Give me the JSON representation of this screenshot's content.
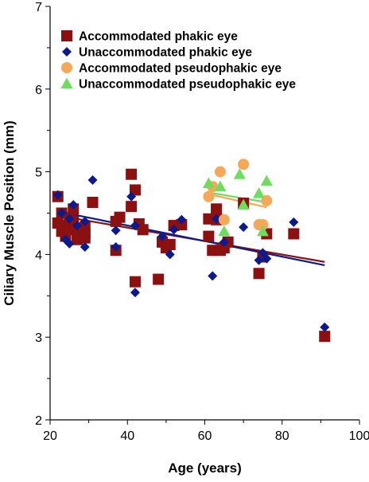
{
  "chart_data": {
    "type": "scatter",
    "xlabel": "Age (years)",
    "ylabel": "Ciliary Muscle Position (mm)",
    "xlim": [
      20,
      100
    ],
    "ylim": [
      2,
      7
    ],
    "x_ticks": [
      20,
      40,
      60,
      80,
      100
    ],
    "y_ticks": [
      2,
      3,
      4,
      5,
      6,
      7
    ],
    "legend_position": "top-left",
    "grid": false,
    "series": [
      {
        "name": "Accommodated phakic eye",
        "marker": "square",
        "color": "#8B1010",
        "points": [
          [
            22,
            4.7
          ],
          [
            22,
            4.38
          ],
          [
            23,
            4.28
          ],
          [
            23,
            4.5
          ],
          [
            24,
            4.35
          ],
          [
            24,
            4.22
          ],
          [
            25,
            4.45
          ],
          [
            25,
            4.3
          ],
          [
            26,
            4.55
          ],
          [
            26,
            4.4
          ],
          [
            27,
            4.3
          ],
          [
            27,
            4.18
          ],
          [
            29,
            4.25
          ],
          [
            29,
            4.2
          ],
          [
            29,
            4.33
          ],
          [
            31,
            4.63
          ],
          [
            37,
            4.05
          ],
          [
            37,
            4.4
          ],
          [
            38,
            4.45
          ],
          [
            41,
            4.97
          ],
          [
            41,
            4.58
          ],
          [
            42,
            4.78
          ],
          [
            42,
            3.67
          ],
          [
            43,
            4.37
          ],
          [
            44,
            4.3
          ],
          [
            48,
            3.7
          ],
          [
            49,
            4.15
          ],
          [
            50,
            4.08
          ],
          [
            51,
            4.12
          ],
          [
            52,
            4.35
          ],
          [
            54,
            4.36
          ],
          [
            61,
            4.43
          ],
          [
            61,
            4.22
          ],
          [
            62,
            4.05
          ],
          [
            63,
            4.55
          ],
          [
            63,
            4.42
          ],
          [
            64,
            4.05
          ],
          [
            65,
            4.08
          ],
          [
            66,
            4.15
          ],
          [
            70,
            4.62
          ],
          [
            74,
            3.77
          ],
          [
            75,
            3.97
          ],
          [
            76,
            4.25
          ],
          [
            83,
            4.25
          ],
          [
            91,
            3.01
          ]
        ],
        "fit": {
          "x": [
            22,
            91
          ],
          "y": [
            4.47,
            3.91
          ]
        }
      },
      {
        "name": "Unaccommodated phakic eye",
        "marker": "diamond",
        "color": "#0D1A8C",
        "points": [
          [
            22,
            4.72
          ],
          [
            23,
            4.5
          ],
          [
            24,
            4.18
          ],
          [
            25,
            4.13
          ],
          [
            25,
            4.43
          ],
          [
            26,
            4.6
          ],
          [
            27,
            4.35
          ],
          [
            29,
            4.09
          ],
          [
            29,
            4.4
          ],
          [
            31,
            4.9
          ],
          [
            37,
            4.29
          ],
          [
            37,
            4.09
          ],
          [
            41,
            4.7
          ],
          [
            42,
            3.54
          ],
          [
            42,
            4.35
          ],
          [
            49,
            4.22
          ],
          [
            51,
            4.0
          ],
          [
            52,
            4.3
          ],
          [
            54,
            4.42
          ],
          [
            62,
            3.74
          ],
          [
            63,
            4.43
          ],
          [
            65,
            4.15
          ],
          [
            70,
            4.33
          ],
          [
            74,
            3.93
          ],
          [
            75,
            4.02
          ],
          [
            76,
            3.95
          ],
          [
            83,
            4.39
          ],
          [
            91,
            3.12
          ]
        ],
        "fit": {
          "x": [
            22,
            91
          ],
          "y": [
            4.52,
            3.87
          ]
        }
      },
      {
        "name": "Accommodated pseudophakic eye",
        "marker": "circle",
        "color": "#F5A85A",
        "points": [
          [
            61,
            4.7
          ],
          [
            62,
            4.82
          ],
          [
            64,
            5.0
          ],
          [
            65,
            4.42
          ],
          [
            70,
            5.09
          ],
          [
            74,
            4.36
          ],
          [
            75,
            4.36
          ],
          [
            76,
            4.65
          ]
        ],
        "fit": {
          "x": [
            61,
            76
          ],
          "y": [
            4.73,
            4.57
          ]
        }
      },
      {
        "name": "Unaccommodated pseudophakic eye",
        "marker": "triangle",
        "color": "#6EDC5C",
        "points": [
          [
            61,
            4.86
          ],
          [
            64,
            4.82
          ],
          [
            65,
            4.28
          ],
          [
            69,
            4.97
          ],
          [
            70,
            4.6
          ],
          [
            74,
            4.74
          ],
          [
            75,
            4.28
          ],
          [
            76,
            4.89
          ]
        ],
        "fit": {
          "x": [
            61,
            76
          ],
          "y": [
            4.75,
            4.63
          ]
        }
      }
    ]
  }
}
